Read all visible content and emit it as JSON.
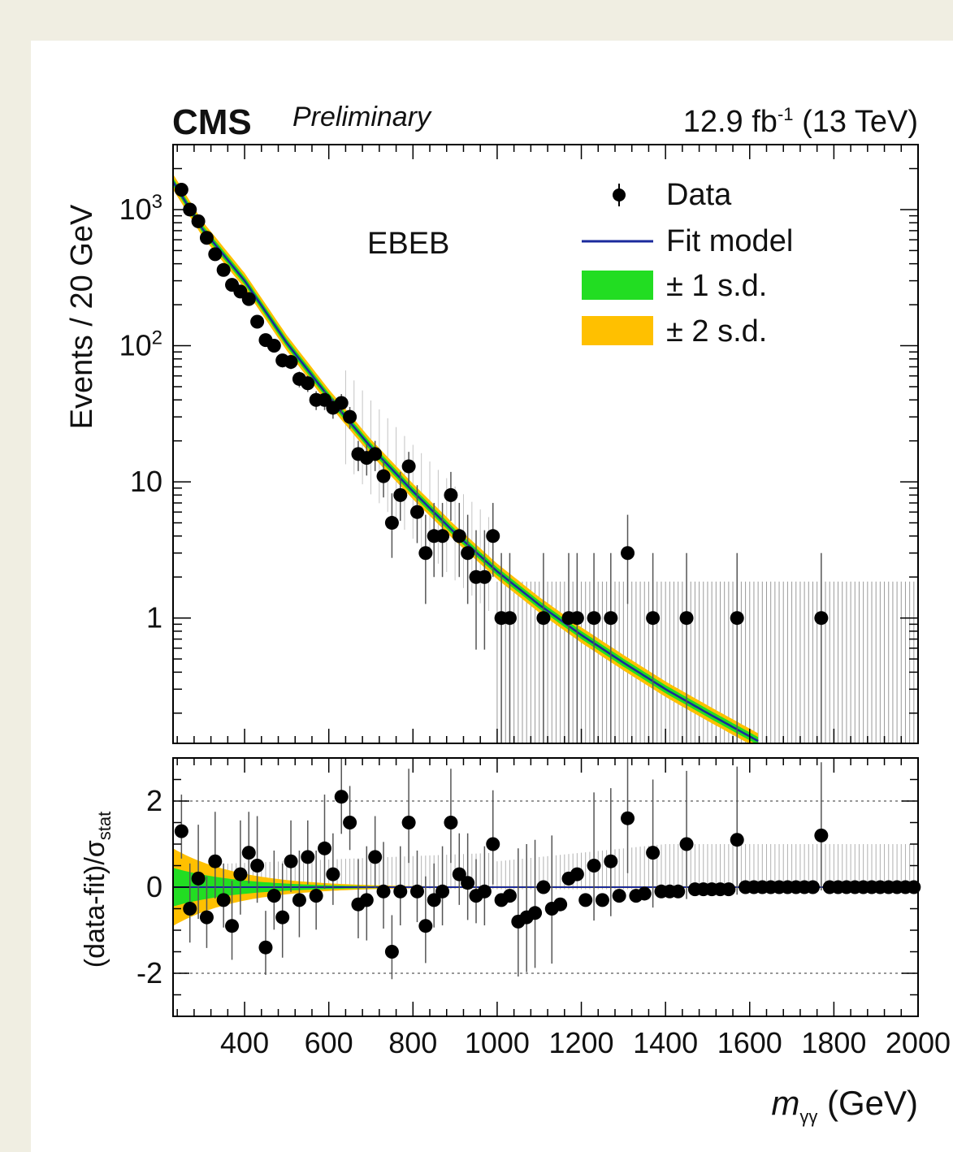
{
  "chart_data": [
    {
      "type": "scatter",
      "panel": "main",
      "experiment": "CMS",
      "status": "Preliminary",
      "lumi_prefix": "12.9 fb",
      "lumi_exp": "-1",
      "lumi_suffix": " (13 TeV)",
      "category_label": "EBEB",
      "ylabel": "Events / 20 GeV",
      "xlabel_main": "m",
      "xlabel_sub": "γγ",
      "xlabel_unit": " (GeV)",
      "yscale": "log",
      "xlim": [
        230,
        2000
      ],
      "ylim": [
        0.12,
        3000
      ],
      "y_ticks": [
        {
          "value": 1000,
          "base": "10",
          "exp": "3"
        },
        {
          "value": 100,
          "base": "10",
          "exp": "2"
        },
        {
          "value": 10,
          "base": "10",
          "exp": ""
        },
        {
          "value": 1,
          "base": "1",
          "exp": ""
        }
      ],
      "legend": {
        "data": "Data",
        "fit": "Fit model",
        "band1": "± 1 s.d.",
        "band2": "± 2 s.d.",
        "position": "top-right"
      },
      "colors": {
        "fit": "#1a2a9c",
        "band1": "#22dd22",
        "band2": "#ffc000",
        "data": "#000000"
      },
      "fit_model": {
        "description": "falling power law",
        "points": [
          [
            230,
            1600
          ],
          [
            300,
            720
          ],
          [
            400,
            300
          ],
          [
            500,
            105
          ],
          [
            600,
            42
          ],
          [
            700,
            18
          ],
          [
            800,
            8.5
          ],
          [
            900,
            4.2
          ],
          [
            1000,
            2.2
          ],
          [
            1100,
            1.25
          ],
          [
            1200,
            0.75
          ],
          [
            1300,
            0.47
          ],
          [
            1400,
            0.3
          ],
          [
            1500,
            0.2
          ],
          [
            1600,
            0.135
          ]
        ]
      },
      "series": [
        {
          "name": "Data",
          "points": [
            [
              250,
              1400
            ],
            [
              270,
              1000
            ],
            [
              290,
              820
            ],
            [
              310,
              620
            ],
            [
              330,
              470
            ],
            [
              350,
              360
            ],
            [
              370,
              280
            ],
            [
              390,
              250
            ],
            [
              410,
              220
            ],
            [
              430,
              150
            ],
            [
              450,
              110
            ],
            [
              470,
              100
            ],
            [
              490,
              78
            ],
            [
              510,
              76
            ],
            [
              530,
              57
            ],
            [
              550,
              53
            ],
            [
              570,
              40
            ],
            [
              590,
              40
            ],
            [
              610,
              35
            ],
            [
              630,
              38
            ],
            [
              650,
              30
            ],
            [
              670,
              16
            ],
            [
              690,
              15
            ],
            [
              710,
              16
            ],
            [
              730,
              11
            ],
            [
              750,
              5
            ],
            [
              770,
              8
            ],
            [
              790,
              13
            ],
            [
              810,
              6
            ],
            [
              830,
              3
            ],
            [
              850,
              4
            ],
            [
              870,
              4
            ],
            [
              890,
              8
            ],
            [
              910,
              4
            ],
            [
              930,
              3
            ],
            [
              950,
              2
            ],
            [
              970,
              2
            ],
            [
              990,
              4
            ],
            [
              1010,
              1
            ],
            [
              1030,
              1
            ],
            [
              1110,
              1
            ],
            [
              1170,
              1
            ],
            [
              1190,
              1
            ],
            [
              1230,
              1
            ],
            [
              1270,
              1
            ],
            [
              1310,
              3
            ],
            [
              1370,
              1
            ],
            [
              1450,
              1
            ],
            [
              1570,
              1
            ],
            [
              1770,
              1
            ]
          ]
        }
      ]
    },
    {
      "type": "scatter",
      "panel": "ratio",
      "ylabel_main": "(data-fit)/σ",
      "ylabel_sub": "stat",
      "ylim": [
        -3.0,
        3.0
      ],
      "y_ticks": [
        "2",
        "0",
        "-2"
      ],
      "x_ticks": [
        "400",
        "600",
        "800",
        "1000",
        "1200",
        "1400",
        "1600",
        "1800",
        "2000"
      ],
      "series": [
        {
          "name": "pulls",
          "points": [
            [
              250,
              1.3
            ],
            [
              270,
              -0.5
            ],
            [
              290,
              0.2
            ],
            [
              310,
              -0.7
            ],
            [
              330,
              0.6
            ],
            [
              350,
              -0.3
            ],
            [
              370,
              -0.9
            ],
            [
              390,
              0.3
            ],
            [
              410,
              0.8
            ],
            [
              430,
              0.5
            ],
            [
              450,
              -1.4
            ],
            [
              470,
              -0.2
            ],
            [
              490,
              -0.7
            ],
            [
              510,
              0.6
            ],
            [
              530,
              -0.3
            ],
            [
              550,
              0.7
            ],
            [
              570,
              -0.2
            ],
            [
              590,
              0.9
            ],
            [
              610,
              0.3
            ],
            [
              630,
              2.1
            ],
            [
              650,
              1.5
            ],
            [
              670,
              -0.4
            ],
            [
              690,
              -0.3
            ],
            [
              710,
              0.7
            ],
            [
              730,
              -0.1
            ],
            [
              750,
              -1.5
            ],
            [
              770,
              -0.1
            ],
            [
              790,
              1.5
            ],
            [
              810,
              -0.1
            ],
            [
              830,
              -0.9
            ],
            [
              850,
              -0.3
            ],
            [
              870,
              -0.1
            ],
            [
              890,
              1.5
            ],
            [
              910,
              0.3
            ],
            [
              930,
              0.1
            ],
            [
              950,
              -0.2
            ],
            [
              970,
              -0.1
            ],
            [
              990,
              1.0
            ],
            [
              1010,
              -0.3
            ],
            [
              1030,
              -0.2
            ],
            [
              1050,
              -0.8
            ],
            [
              1070,
              -0.7
            ],
            [
              1090,
              -0.6
            ],
            [
              1110,
              0.0
            ],
            [
              1130,
              -0.5
            ],
            [
              1150,
              -0.4
            ],
            [
              1170,
              0.2
            ],
            [
              1190,
              0.3
            ],
            [
              1210,
              -0.3
            ],
            [
              1230,
              0.5
            ],
            [
              1250,
              -0.3
            ],
            [
              1270,
              0.6
            ],
            [
              1290,
              -0.2
            ],
            [
              1310,
              1.6
            ],
            [
              1330,
              -0.2
            ],
            [
              1350,
              -0.15
            ],
            [
              1370,
              0.8
            ],
            [
              1390,
              -0.1
            ],
            [
              1410,
              -0.1
            ],
            [
              1430,
              -0.1
            ],
            [
              1450,
              1.0
            ],
            [
              1470,
              -0.05
            ],
            [
              1490,
              -0.05
            ],
            [
              1510,
              -0.05
            ],
            [
              1530,
              -0.05
            ],
            [
              1550,
              -0.05
            ],
            [
              1570,
              1.1
            ],
            [
              1590,
              0
            ],
            [
              1610,
              0
            ],
            [
              1630,
              0
            ],
            [
              1650,
              0
            ],
            [
              1670,
              0
            ],
            [
              1690,
              0
            ],
            [
              1710,
              0
            ],
            [
              1730,
              0
            ],
            [
              1750,
              0
            ],
            [
              1770,
              1.2
            ],
            [
              1790,
              0
            ],
            [
              1810,
              0
            ],
            [
              1830,
              0
            ],
            [
              1850,
              0
            ],
            [
              1870,
              0
            ],
            [
              1890,
              0
            ],
            [
              1910,
              0
            ],
            [
              1930,
              0
            ],
            [
              1950,
              0
            ],
            [
              1970,
              0
            ],
            [
              1990,
              0
            ]
          ]
        }
      ]
    }
  ]
}
